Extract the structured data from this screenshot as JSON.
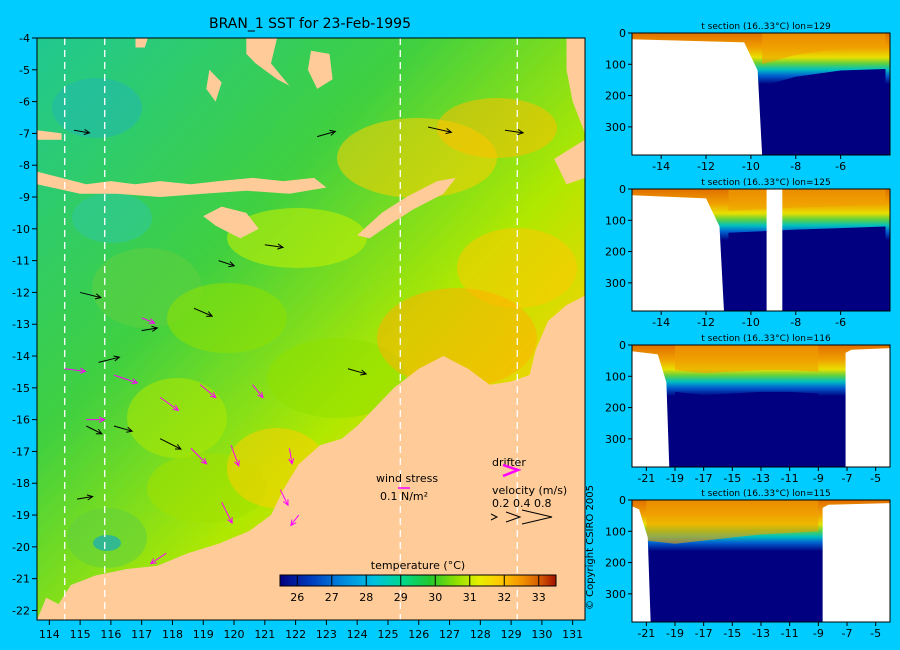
{
  "colors": {
    "background": "#00ccff",
    "land": "#ffcc99",
    "deep_water": "#000080",
    "drifter": "#ff00ff",
    "colormap": [
      "#000080",
      "#0040c0",
      "#0090e0",
      "#00c0e0",
      "#00d890",
      "#20c830",
      "#90e000",
      "#e8f000",
      "#ffc800",
      "#f09000",
      "#d05000",
      "#a01000"
    ]
  },
  "main_map": {
    "title": "BRAN_1 SST for 23-Feb-1995",
    "lon_ticks": [
      "114",
      "115",
      "116",
      "117",
      "118",
      "119",
      "120",
      "121",
      "122",
      "123",
      "124",
      "125",
      "126",
      "127",
      "128",
      "129",
      "130",
      "131"
    ],
    "lat_ticks": [
      "-4",
      "-5",
      "-6",
      "-7",
      "-8",
      "-9",
      "-10",
      "-11",
      "-12",
      "-13",
      "-14",
      "-15",
      "-16",
      "-17",
      "-18",
      "-19",
      "-20",
      "-21",
      "-22"
    ],
    "lon_range": [
      113.6,
      131.4
    ],
    "lat_range": [
      -22.3,
      -4
    ],
    "section_lines_lon": [
      114.5,
      115.8,
      125.4,
      129.2
    ],
    "wind_stress_label": "wind stress",
    "wind_stress_unit": "0.1 N/m²",
    "drifter_label": "drifter",
    "velocity_label": "velocity (m/s)",
    "velocity_scale": "0.2 0.4 0.8",
    "colorbar": {
      "title": "temperature (°C)",
      "ticks": [
        "26",
        "27",
        "28",
        "29",
        "30",
        "31",
        "32",
        "33"
      ],
      "range": [
        25.5,
        33.5
      ]
    }
  },
  "chart_data": [
    {
      "type": "heatmap",
      "title": "BRAN_1 SST for 23-Feb-1995",
      "x_range": [
        113.6,
        131.4
      ],
      "y_range": [
        -22.3,
        -4
      ],
      "value_range_C": [
        26,
        33
      ]
    },
    {
      "type": "heatmap",
      "title": "t section (16..33°C) lon=129",
      "x_ticks": [
        "-14",
        "-12",
        "-10",
        "-8",
        "-6"
      ],
      "y_ticks": [
        "0",
        "100",
        "200",
        "300"
      ],
      "x_range": [
        -15.3,
        -3.8
      ],
      "y_range": [
        0,
        390
      ],
      "land_edge_lat": -9.5,
      "thermocline_depth_m": {
        "-9.5": 130,
        "-8": 100,
        "-6": 80,
        "-4": 75
      }
    },
    {
      "type": "heatmap",
      "title": "t section (16..33°C) lon=125",
      "x_ticks": [
        "-14",
        "-12",
        "-10",
        "-8",
        "-6"
      ],
      "y_ticks": [
        "0",
        "100",
        "200",
        "300"
      ],
      "x_range": [
        -15.3,
        -3.8
      ],
      "y_range": [
        0,
        390
      ],
      "land_edge_lat": -11.2,
      "land_gap_lat": [
        -9.3,
        -8.6
      ],
      "thermocline_depth_m": {
        "-11": 100,
        "-8": 90,
        "-6": 85,
        "-4": 80
      }
    },
    {
      "type": "heatmap",
      "title": "t section (16..33°C) lon=116",
      "x_ticks": [
        "-21",
        "-19",
        "-17",
        "-15",
        "-13",
        "-11",
        "-9",
        "-7",
        "-5"
      ],
      "y_ticks": [
        "0",
        "100",
        "200",
        "300"
      ],
      "x_range": [
        -22,
        -4
      ],
      "y_range": [
        0,
        390
      ],
      "land_edge_lat": -19.4,
      "right_land_lat": -7.1,
      "thermocline_depth_m": {
        "-19": 110,
        "-17": 120,
        "-15": 115,
        "-13": 110,
        "-11": 110,
        "-9": 115
      }
    },
    {
      "type": "heatmap",
      "title": "t section (16..33°C) lon=115",
      "x_ticks": [
        "-21",
        "-19",
        "-17",
        "-15",
        "-13",
        "-11",
        "-9",
        "-7",
        "-5"
      ],
      "y_ticks": [
        "0",
        "100",
        "200",
        "300"
      ],
      "x_range": [
        -22,
        -4
      ],
      "y_range": [
        0,
        390
      ],
      "land_edge_lat": -20.7,
      "right_land_lat": -8.7,
      "thermocline_depth_m": {
        "-21": 160,
        "-19": 170,
        "-17": 160,
        "-15": 150,
        "-13": 140,
        "-11": 135,
        "-9": 130
      }
    }
  ],
  "copyright": "© Copyright CSIRO 2005"
}
